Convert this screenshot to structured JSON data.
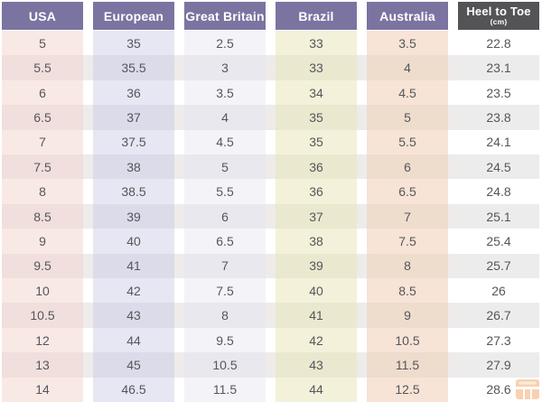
{
  "chart_data": {
    "type": "table",
    "columns": [
      {
        "key": "usa",
        "label": "USA"
      },
      {
        "key": "european",
        "label": "European"
      },
      {
        "key": "gb",
        "label": "Great Britain"
      },
      {
        "key": "brazil",
        "label": "Brazil"
      },
      {
        "key": "australia",
        "label": "Australia"
      },
      {
        "key": "heel",
        "label": "Heel to Toe",
        "sublabel": "(cm)"
      }
    ],
    "rows": [
      [
        "5",
        "35",
        "2.5",
        "33",
        "3.5",
        "22.8"
      ],
      [
        "5.5",
        "35.5",
        "3",
        "33",
        "4",
        "23.1"
      ],
      [
        "6",
        "36",
        "3.5",
        "34",
        "4.5",
        "23.5"
      ],
      [
        "6.5",
        "37",
        "4",
        "35",
        "5",
        "23.8"
      ],
      [
        "7",
        "37.5",
        "4.5",
        "35",
        "5.5",
        "24.1"
      ],
      [
        "7.5",
        "38",
        "5",
        "36",
        "6",
        "24.5"
      ],
      [
        "8",
        "38.5",
        "5.5",
        "36",
        "6.5",
        "24.8"
      ],
      [
        "8.5",
        "39",
        "6",
        "37",
        "7",
        "25.1"
      ],
      [
        "9",
        "40",
        "6.5",
        "38",
        "7.5",
        "25.4"
      ],
      [
        "9.5",
        "41",
        "7",
        "39",
        "8",
        "25.7"
      ],
      [
        "10",
        "42",
        "7.5",
        "40",
        "8.5",
        "26"
      ],
      [
        "10.5",
        "43",
        "8",
        "41",
        "9",
        "26.7"
      ],
      [
        "12",
        "44",
        "9.5",
        "42",
        "10.5",
        "27.3"
      ],
      [
        "13",
        "45",
        "10.5",
        "43",
        "11.5",
        "27.9"
      ],
      [
        "14",
        "46.5",
        "11.5",
        "44",
        "12.5",
        "28.6"
      ]
    ],
    "layout": {
      "striped": true,
      "stripe_pattern": "odd rows light, even rows dark"
    }
  },
  "colors": {
    "header_bg": "#7b74a1",
    "header_text": "#ffffff",
    "heel_header_bg": "#545457",
    "cell_text": "#55565b",
    "stripe": "#eeebea",
    "usa_light": "#f9e9e5",
    "usa_dark": "#f0dfdc",
    "european_light": "#e7e6f3",
    "european_dark": "#dcdbe9",
    "gb_light": "#f4f3f8",
    "gb_dark": "#e9e8ee",
    "brazil_light": "#f3f1d9",
    "brazil_dark": "#eae8cf",
    "australia_light": "#f7e4d6",
    "australia_dark": "#eedccd",
    "heel_light": "#ffffff",
    "heel_dark": "#ececec",
    "watermark_orange": "#f39a4e"
  }
}
